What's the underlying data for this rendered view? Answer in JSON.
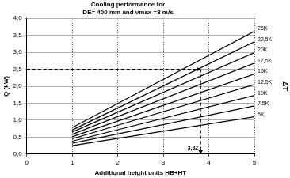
{
  "chart_data": {
    "type": "line",
    "title": [
      "Cooling performance for",
      "DE= 400 mm and vmax =3 m/s"
    ],
    "x_label": "Additional height units HB+HT",
    "y_label": "Q (kW)",
    "series_label": "ΔT",
    "x": [
      1,
      5
    ],
    "series": [
      {
        "name": "25K",
        "color": "#000000",
        "values": [
          0.78,
          3.62
        ]
      },
      {
        "name": "22,5K",
        "color": "#000000",
        "values": [
          0.71,
          3.31
        ]
      },
      {
        "name": "20K",
        "color": "#000000",
        "values": [
          0.65,
          2.99
        ]
      },
      {
        "name": "17,5K",
        "color": "#000000",
        "values": [
          0.58,
          2.68
        ]
      },
      {
        "name": "15K",
        "color": "#000000",
        "values": [
          0.51,
          2.36
        ]
      },
      {
        "name": "12,5K",
        "color": "#000000",
        "values": [
          0.45,
          2.05
        ]
      },
      {
        "name": "10K",
        "color": "#000000",
        "values": [
          0.38,
          1.73
        ]
      },
      {
        "name": "7,5K",
        "color": "#000000",
        "values": [
          0.32,
          1.42
        ]
      },
      {
        "name": "5K",
        "color": "#000000",
        "values": [
          0.25,
          1.1
        ]
      }
    ],
    "annotations": [
      {
        "x": 3.82,
        "y": 2.5,
        "label": "3,82"
      }
    ],
    "xlim": [
      0,
      5
    ],
    "xticks": [
      0,
      1,
      2,
      3,
      4,
      5
    ],
    "ylim": [
      0,
      4
    ],
    "yticks": [
      {
        "value": 0,
        "label": "0,0"
      },
      {
        "value": 0.5,
        "label": "0,5"
      },
      {
        "value": 1,
        "label": "1,0"
      },
      {
        "value": 1.5,
        "label": "1,5"
      },
      {
        "value": 2,
        "label": "2,0"
      },
      {
        "value": 2.5,
        "label": "2,5"
      },
      {
        "value": 3,
        "label": "3,0"
      },
      {
        "value": 3.5,
        "label": "3,5"
      },
      {
        "value": 4,
        "label": "4,0"
      }
    ],
    "grid": true
  }
}
